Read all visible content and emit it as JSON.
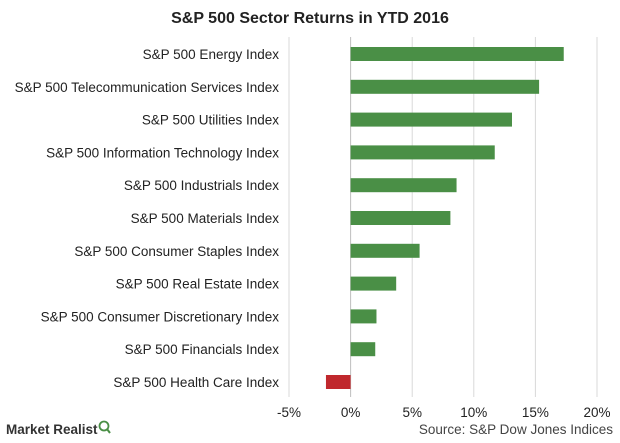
{
  "chart_data": {
    "type": "bar",
    "orientation": "horizontal",
    "title": "S&P 500 Sector Returns in YTD 2016",
    "categories": [
      "S&P 500 Energy Index",
      "S&P 500 Telecommunication Services Index",
      "S&P 500 Utilities Index",
      "S&P 500 Information Technology Index",
      "S&P 500 Industrials Index",
      "S&P 500 Materials Index",
      "S&P 500 Consumer Staples Index",
      "S&P 500 Real Estate Index",
      "S&P 500 Consumer Discretionary Index",
      "S&P 500 Financials Index",
      "S&P 500 Health Care Index"
    ],
    "values": [
      17.3,
      15.3,
      13.1,
      11.7,
      8.6,
      8.1,
      5.6,
      3.7,
      2.1,
      2.0,
      -2.0
    ],
    "xlim": [
      -5,
      20
    ],
    "xticks": [
      -5,
      0,
      5,
      10,
      15,
      20
    ],
    "tick_labels": [
      "-5%",
      "0%",
      "5%",
      "10%",
      "15%",
      "20%"
    ],
    "grid": "vertical",
    "positive_color": "#4a8f46",
    "negative_color": "#c0282d",
    "gridline_color": "#d9d9d9",
    "axis_color": "#bfbfbf"
  },
  "footer": {
    "source": "Source: S&P Dow Jones Indices",
    "brand": "Market Realist"
  }
}
